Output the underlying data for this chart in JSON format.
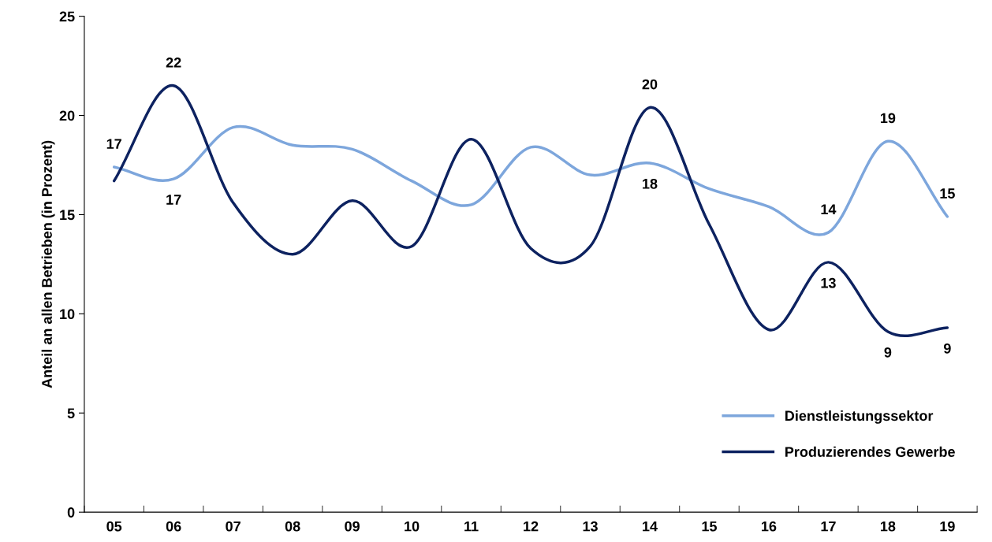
{
  "chart_data": {
    "type": "line",
    "ylabel": "Anteil an allen Betrieben (in Prozent)",
    "categories": [
      "05",
      "06",
      "07",
      "08",
      "09",
      "10",
      "11",
      "12",
      "13",
      "14",
      "15",
      "16",
      "17",
      "18",
      "19"
    ],
    "series": [
      {
        "name": "Dienstleistungssektor",
        "color": "#7da6dc",
        "values": [
          17.4,
          16.8,
          19.4,
          18.5,
          18.3,
          16.7,
          15.5,
          18.4,
          17.0,
          17.6,
          16.3,
          15.4,
          14.1,
          18.7,
          14.9
        ],
        "value_labels": [
          "17",
          "17",
          null,
          null,
          null,
          null,
          null,
          null,
          null,
          "18",
          null,
          null,
          "14",
          "19",
          "15"
        ]
      },
      {
        "name": "Produzierendes Gewerbe",
        "color": "#0d2260",
        "values": [
          16.7,
          21.5,
          15.6,
          13.0,
          15.7,
          13.4,
          18.8,
          13.3,
          13.4,
          20.4,
          14.5,
          9.2,
          12.6,
          9.1,
          9.3
        ],
        "value_labels": [
          null,
          "22",
          null,
          null,
          null,
          null,
          null,
          null,
          null,
          "20",
          null,
          null,
          "13",
          "9",
          "9"
        ]
      }
    ],
    "ylim": [
      0,
      25
    ],
    "yticks": [
      0,
      5,
      10,
      15,
      20,
      25
    ],
    "grid": false,
    "legend": "bottom right",
    "marker": "none",
    "line_style": "solid"
  }
}
